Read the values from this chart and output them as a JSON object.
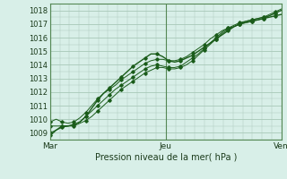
{
  "title": "",
  "xlabel": "Pression niveau de la mer( hPa )",
  "ylabel": "",
  "bg_color": "#d8efe8",
  "grid_color": "#a8c8b8",
  "line_color": "#1a5c1a",
  "x_ticks": [
    0,
    48,
    96
  ],
  "x_tick_labels": [
    "Mar",
    "Jeu",
    "Ven"
  ],
  "ylim": [
    1008.5,
    1018.5
  ],
  "xlim": [
    0,
    96
  ],
  "yticks": [
    1009,
    1010,
    1011,
    1012,
    1013,
    1014,
    1015,
    1016,
    1017,
    1018
  ],
  "series": [
    [
      1008.8,
      1009.2,
      1009.5,
      1009.5,
      1009.6,
      1009.8,
      1010.2,
      1010.8,
      1011.4,
      1011.9,
      1012.3,
      1012.7,
      1013.1,
      1013.5,
      1013.9,
      1014.2,
      1014.5,
      1014.8,
      1014.8,
      1014.6,
      1014.3,
      1014.2,
      1014.3,
      1014.5,
      1014.7,
      1015.0,
      1015.3,
      1015.6,
      1015.9,
      1016.2,
      1016.5,
      1016.8,
      1017.0,
      1017.1,
      1017.2,
      1017.3,
      1017.4,
      1017.5,
      1017.6,
      1017.7
    ],
    [
      1009.8,
      1010.0,
      1009.8,
      1009.7,
      1009.8,
      1010.1,
      1010.5,
      1011.0,
      1011.5,
      1011.9,
      1012.2,
      1012.5,
      1012.9,
      1013.2,
      1013.5,
      1013.8,
      1014.1,
      1014.3,
      1014.4,
      1014.4,
      1014.3,
      1014.3,
      1014.4,
      1014.6,
      1014.9,
      1015.2,
      1015.5,
      1015.9,
      1016.2,
      1016.5,
      1016.7,
      1016.8,
      1017.0,
      1017.1,
      1017.2,
      1017.3,
      1017.4,
      1017.6,
      1017.8,
      1018.0
    ],
    [
      1009.0,
      1009.2,
      1009.4,
      1009.5,
      1009.6,
      1009.8,
      1010.2,
      1010.6,
      1011.0,
      1011.4,
      1011.8,
      1012.2,
      1012.5,
      1012.8,
      1013.1,
      1013.4,
      1013.7,
      1013.9,
      1014.0,
      1013.9,
      1013.8,
      1013.8,
      1013.9,
      1014.2,
      1014.5,
      1014.8,
      1015.2,
      1015.6,
      1016.0,
      1016.4,
      1016.7,
      1016.9,
      1017.1,
      1017.2,
      1017.3,
      1017.4,
      1017.5,
      1017.6,
      1017.8,
      1018.0
    ],
    [
      1009.5,
      1009.5,
      1009.5,
      1009.5,
      1009.5,
      1009.7,
      1009.9,
      1010.2,
      1010.6,
      1011.0,
      1011.4,
      1011.8,
      1012.2,
      1012.5,
      1012.8,
      1013.1,
      1013.4,
      1013.6,
      1013.8,
      1013.8,
      1013.7,
      1013.7,
      1013.8,
      1014.0,
      1014.3,
      1014.7,
      1015.1,
      1015.5,
      1015.9,
      1016.3,
      1016.6,
      1016.8,
      1017.0,
      1017.2,
      1017.3,
      1017.4,
      1017.5,
      1017.7,
      1017.9,
      1018.1
    ]
  ]
}
